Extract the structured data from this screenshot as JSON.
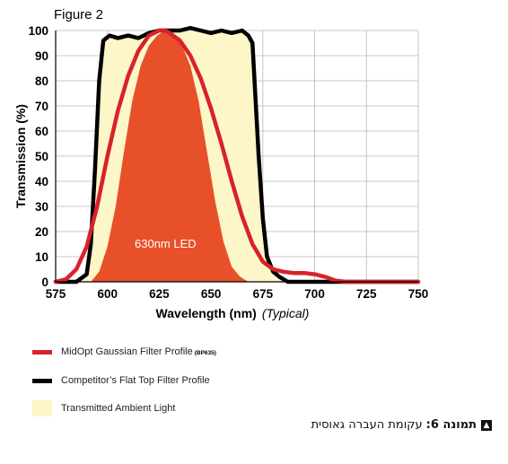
{
  "chart_data": {
    "type": "line",
    "title": "Figure 2",
    "xlabel": "Wavelength (nm)",
    "xlabel_note": "(Typical)",
    "ylabel": "Transmission (%)",
    "xlim": [
      575,
      750
    ],
    "ylim": [
      0,
      100
    ],
    "x_ticks": [
      575,
      600,
      625,
      650,
      675,
      700,
      725,
      750
    ],
    "y_ticks": [
      0,
      10,
      20,
      30,
      40,
      50,
      60,
      70,
      80,
      90,
      100
    ],
    "grid": true,
    "annotation": "630nm LED",
    "series": [
      {
        "name": "Transmitted Ambient Light",
        "kind": "area",
        "color": "#fcf6c8",
        "x": [
          575,
          585,
          590,
          592,
          594,
          596,
          598,
          601,
          605,
          610,
          615,
          620,
          625,
          630,
          635,
          640,
          645,
          650,
          655,
          660,
          665,
          668,
          670,
          671,
          673,
          675,
          677,
          680,
          683,
          687,
          690,
          700,
          750
        ],
        "y": [
          0,
          0,
          3,
          15,
          45,
          80,
          96,
          98,
          97,
          98,
          97,
          99,
          100,
          100,
          100,
          101,
          100,
          99,
          100,
          99,
          100,
          98,
          95,
          80,
          50,
          25,
          10,
          4,
          2,
          0,
          0,
          0,
          0
        ]
      },
      {
        "name": "630nm LED",
        "kind": "area",
        "color": "#e8502a",
        "x": [
          575,
          592,
          596,
          600,
          604,
          608,
          612,
          616,
          620,
          624,
          627,
          630,
          633,
          636,
          640,
          644,
          648,
          652,
          656,
          660,
          664,
          668,
          750
        ],
        "y": [
          0,
          0,
          4,
          14,
          30,
          52,
          72,
          86,
          94,
          98,
          99.5,
          99.5,
          98,
          94,
          86,
          72,
          52,
          32,
          16,
          6,
          2,
          0,
          0
        ]
      },
      {
        "name": "Competitor's Flat Top Filter Profile",
        "kind": "line",
        "color": "#000000",
        "x": [
          575,
          585,
          590,
          592,
          594,
          596,
          598,
          601,
          605,
          610,
          615,
          620,
          625,
          630,
          635,
          640,
          645,
          650,
          655,
          660,
          665,
          668,
          670,
          671,
          673,
          675,
          677,
          680,
          683,
          687,
          690,
          700,
          750
        ],
        "y": [
          0,
          0,
          3,
          15,
          45,
          80,
          96,
          98,
          97,
          98,
          97,
          99,
          100,
          100,
          100,
          101,
          100,
          99,
          100,
          99,
          100,
          98,
          95,
          80,
          50,
          25,
          10,
          4,
          2,
          0,
          0,
          0,
          0
        ]
      },
      {
        "name": "MidOpt Gaussian Filter Profile",
        "kind": "line",
        "color": "#d8222a",
        "x": [
          575,
          580,
          585,
          590,
          595,
          600,
          605,
          610,
          615,
          620,
          625,
          628,
          630,
          635,
          640,
          645,
          650,
          655,
          660,
          665,
          670,
          675,
          680,
          685,
          690,
          695,
          700,
          705,
          710,
          715,
          720,
          750
        ],
        "y": [
          0,
          1,
          5,
          14,
          30,
          50,
          68,
          82,
          92,
          98,
          100,
          100,
          99,
          96,
          90,
          81,
          69,
          55,
          40,
          26,
          15,
          8,
          5,
          4,
          3.5,
          3.5,
          3,
          2,
          0.5,
          0,
          0,
          0
        ]
      }
    ]
  },
  "legend": [
    {
      "label": "MidOpt Gaussian Filter Profile",
      "tag": "(BP635)",
      "swatch": "line",
      "color": "#d8222a"
    },
    {
      "label": "Competitor’s Flat Top Filter Profile",
      "tag": "",
      "swatch": "line",
      "color": "#000000"
    },
    {
      "label": "Transmitted Ambient Light",
      "tag": "",
      "swatch": "box",
      "color": "#fcf6c8"
    }
  ],
  "caption": {
    "icon": "collapse-icon",
    "bold": "תמונה 6:",
    "text": "עקומת העברה גאוסית"
  }
}
